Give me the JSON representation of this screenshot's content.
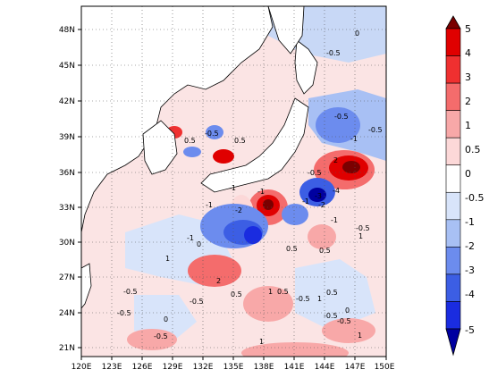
{
  "lat_labels": [
    "48N",
    "45N",
    "42N",
    "39N",
    "36N",
    "33N",
    "30N",
    "27N",
    "24N",
    "21N"
  ],
  "lon_labels": [
    "120E",
    "123E",
    "126E",
    "129E",
    "132E",
    "135E",
    "138E",
    "141E",
    "144E",
    "147E",
    "150E"
  ],
  "colorbar": {
    "labels": [
      "5",
      "4",
      "3",
      "2",
      "1",
      "0.5",
      "0",
      "-0.5",
      "-1",
      "-2",
      "-3",
      "-4",
      "-5"
    ],
    "colors": [
      "#7a0000",
      "#e00000",
      "#ef3030",
      "#f46c6c",
      "#f8a8a8",
      "#fcd8d8",
      "#ffffff",
      "#d8e4fa",
      "#a8c0f4",
      "#6c8cee",
      "#3c5ee4",
      "#1a2ce0",
      "#0000a0"
    ]
  },
  "contour_labels": [
    "-0.5",
    "0.5",
    "-0.5",
    "0.5",
    "-1",
    "-1",
    "-0.5",
    "-1",
    "-0.5",
    "0",
    "-0.5",
    "-1",
    "-2",
    "-3",
    "-4",
    "-1",
    "-2",
    "-1",
    "0.5",
    "0.5",
    "-0.5",
    "1",
    "-1",
    "0",
    "2",
    "1",
    "-0.5",
    "0.5",
    "-0.5",
    "0",
    "1",
    "0.5",
    "-0.5",
    "1",
    "0.5",
    "-0.5",
    "0",
    "1",
    "-0.5",
    "1",
    "-0.5",
    "-0.5",
    "2"
  ]
}
